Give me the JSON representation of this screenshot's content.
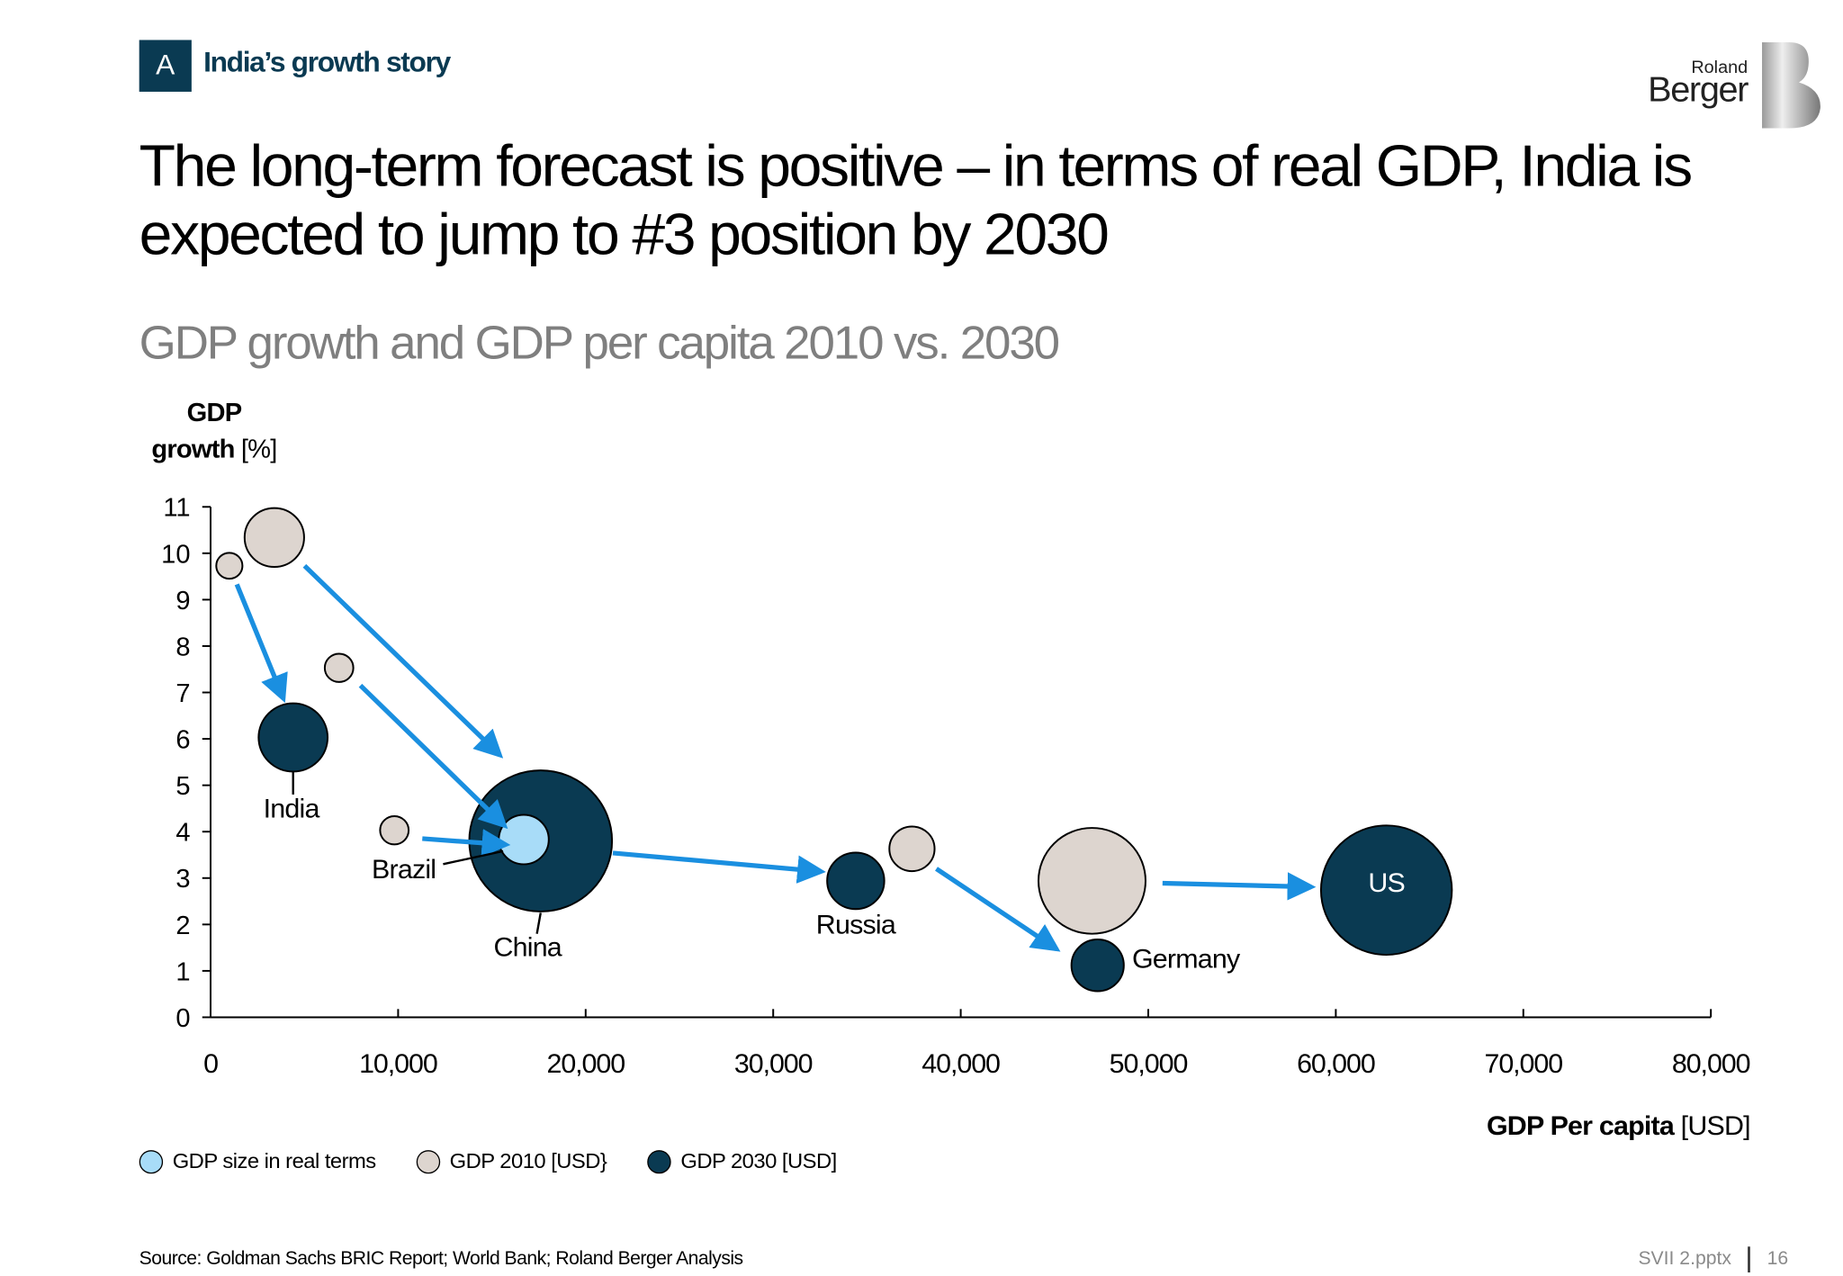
{
  "header": {
    "badge": "A",
    "section": "India’s growth story",
    "logo_text_small": "Roland",
    "logo_text_large": "Berger"
  },
  "title": "The long-term forecast is positive – in terms of real GDP, India is expected to jump to #3 position by 2030",
  "subtitle": "GDP growth and GDP per capita 2010 vs. 2030",
  "legend": [
    {
      "label": "GDP size in real terms",
      "color": "#a8dcf8"
    },
    {
      "label": "GDP 2010 [USD}",
      "color": "#ddd5cf"
    },
    {
      "label": "GDP 2030 [USD]",
      "color": "#0a3a52"
    }
  ],
  "source": "Source:  Goldman Sachs BRIC Report; World Bank; Roland Berger Analysis",
  "footer": {
    "file": "SVII 2.pptx",
    "page": "16"
  },
  "colors": {
    "dark": "#0a3a52",
    "grey": "#ddd5cf",
    "light": "#a8dcf8",
    "arrow": "#1a8fe0"
  },
  "chart_data": {
    "type": "scatter",
    "subtype": "bubble",
    "ylabel_bold": "GDP",
    "ylabel_bold2": "growth",
    "ylabel_unit": " [%]",
    "xlabel_bold": "GDP Per capita",
    "xlabel_unit": " [USD]",
    "xlim": [
      0,
      80000
    ],
    "ylim": [
      0,
      11
    ],
    "xticks": [
      "0",
      "10,000",
      "20,000",
      "30,000",
      "40,000",
      "50,000",
      "60,000",
      "70,000",
      "80,000"
    ],
    "yticks": [
      "0",
      "1",
      "2",
      "3",
      "4",
      "5",
      "6",
      "7",
      "8",
      "9",
      "10",
      "11"
    ],
    "grid": false,
    "legend_position": "bottom-left",
    "bubbles": [
      {
        "series": "GDP 2010",
        "x": 1000,
        "y": 9.73,
        "relative_size": 11
      },
      {
        "series": "GDP 2010",
        "x": 3400,
        "y": 10.34,
        "relative_size": 25
      },
      {
        "series": "GDP 2010",
        "x": 6850,
        "y": 7.53,
        "relative_size": 12
      },
      {
        "series": "GDP 2010",
        "x": 9800,
        "y": 4.03,
        "relative_size": 12
      },
      {
        "series": "GDP 2010",
        "x": 37400,
        "y": 3.63,
        "relative_size": 19
      },
      {
        "series": "GDP 2010",
        "x": 47000,
        "y": 2.94,
        "relative_size": 45
      },
      {
        "series": "GDP 2030",
        "country": "India",
        "x": 4400,
        "y": 6.03,
        "relative_size": 29
      },
      {
        "series": "GDP 2030",
        "country": "China",
        "x": 17600,
        "y": 3.8,
        "relative_size": 60
      },
      {
        "series": "GDP size in real terms",
        "x": 16700,
        "y": 3.83,
        "relative_size": 21
      },
      {
        "series": "GDP 2030",
        "country": "Russia",
        "x": 34400,
        "y": 2.94,
        "relative_size": 24
      },
      {
        "series": "GDP 2030",
        "country": "Germany",
        "x": 47300,
        "y": 1.12,
        "relative_size": 22
      },
      {
        "series": "GDP 2030",
        "country": "US",
        "x": 62700,
        "y": 2.74,
        "relative_size": 55
      }
    ],
    "arrows": [
      {
        "from": [
          1400,
          9.33
        ],
        "to": [
          3880,
          6.87
        ]
      },
      {
        "from": [
          5010,
          9.73
        ],
        "to": [
          15420,
          5.65
        ]
      },
      {
        "from": [
          7990,
          7.15
        ],
        "to": [
          15670,
          4.13
        ]
      },
      {
        "from": [
          11290,
          3.85
        ],
        "to": [
          15740,
          3.72
        ]
      },
      {
        "from": [
          21450,
          3.54
        ],
        "to": [
          32560,
          3.14
        ]
      },
      {
        "from": [
          38700,
          3.2
        ],
        "to": [
          45110,
          1.47
        ]
      },
      {
        "from": [
          50760,
          2.89
        ],
        "to": [
          58690,
          2.81
        ]
      }
    ],
    "labels": [
      {
        "text": "India",
        "x": 4300,
        "y": 4.3,
        "leader": [
          [
            4400,
            5.3
          ],
          [
            4400,
            4.8
          ]
        ]
      },
      {
        "text": "Brazil",
        "x": 10300,
        "y": 3.0,
        "leader": [
          [
            12400,
            3.3
          ],
          [
            15600,
            3.58
          ]
        ]
      },
      {
        "text": "China",
        "x": 16900,
        "y": 1.32,
        "leader": [
          [
            17600,
            2.25
          ],
          [
            17400,
            1.8
          ]
        ]
      },
      {
        "text": "Russia",
        "x": 34400,
        "y": 1.8,
        "leader": null
      },
      {
        "text": "Germany",
        "x": 52000,
        "y": 1.07,
        "leader": null
      },
      {
        "text": "US",
        "x": 62700,
        "y": 2.7,
        "leader": null,
        "inside": true
      }
    ]
  }
}
